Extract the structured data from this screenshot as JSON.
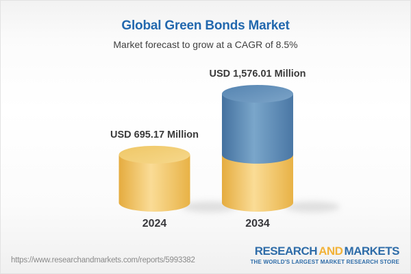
{
  "chart_data": {
    "type": "bar",
    "style": "3d-cylinder",
    "title": "Global Green Bonds Market",
    "subtitle": "Market forecast to grow at a CAGR of 8.5%",
    "categories": [
      "2024",
      "2034"
    ],
    "values": [
      695.17,
      1576.01
    ],
    "value_labels": [
      "USD 695.17 Million",
      "USD 1,576.01 Million"
    ],
    "unit": "USD Million",
    "cagr": "8.5%",
    "legend": "none",
    "axes": "none",
    "colors": {
      "base_segment_gold": "#E9B54A",
      "growth_segment_blue": "#4A79A8",
      "label_text": "#3A3A3A"
    }
  },
  "header": {
    "title_color": "#2268AE",
    "subtitle_color": "#3F3F3F"
  },
  "footer": {
    "report_url": "https://www.researchandmarkets.com/reports/5993382",
    "logo": {
      "word1": "RESEARCH",
      "word2": "AND",
      "word3": "MARKETS",
      "tagline": "THE WORLD'S LARGEST MARKET RESEARCH STORE",
      "blue": "#2E6CA8",
      "gold": "#F2B238"
    }
  }
}
